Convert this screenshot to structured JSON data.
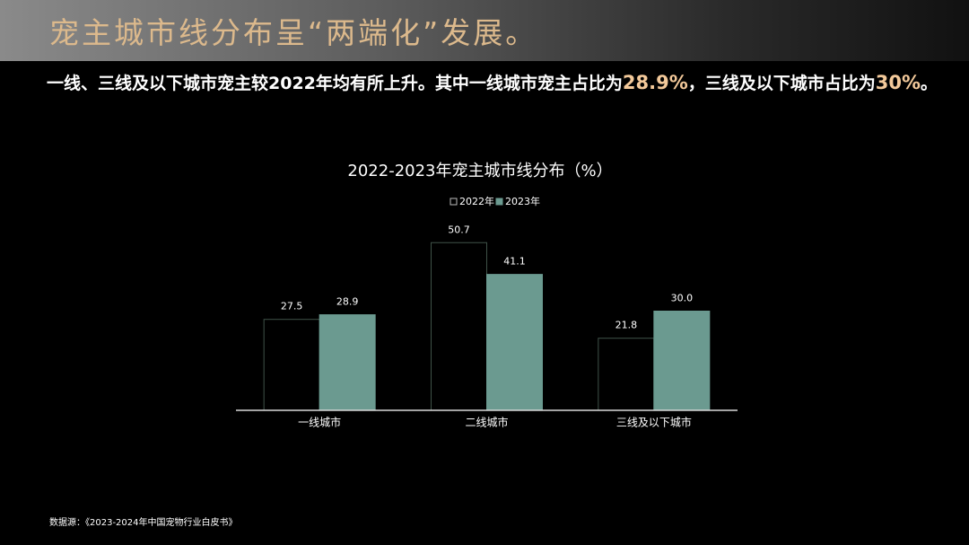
{
  "header": {
    "title": "宠主城市线分布呈“两端化”发展。"
  },
  "subtitle": [
    "一线、三线及以下城市宠主较2022年均有所上升。其中一线城市宠主占比为",
    "28.9%",
    "，三线及以下城市占比为",
    "30%",
    "。"
  ],
  "chart_data": {
    "type": "bar",
    "title": "2022-2023年宠主城市线分布（%）",
    "categories": [
      "一线城市",
      "二线城市",
      "三线及以下城市"
    ],
    "series": [
      {
        "name": "2022年",
        "color": "#3f5248",
        "fill": "none",
        "values": [
          27.5,
          50.7,
          21.8
        ]
      },
      {
        "name": "2023年",
        "color": "#6b9a90",
        "fill": "solid",
        "values": [
          28.9,
          41.1,
          30.0
        ],
        "value_labels": [
          "28.9",
          "41.1",
          "30.0"
        ]
      }
    ],
    "ylim": [
      0,
      60
    ],
    "grid": false,
    "legend": "top"
  },
  "source": "数据源：《2023-2024年中国宠物行业白皮书》"
}
